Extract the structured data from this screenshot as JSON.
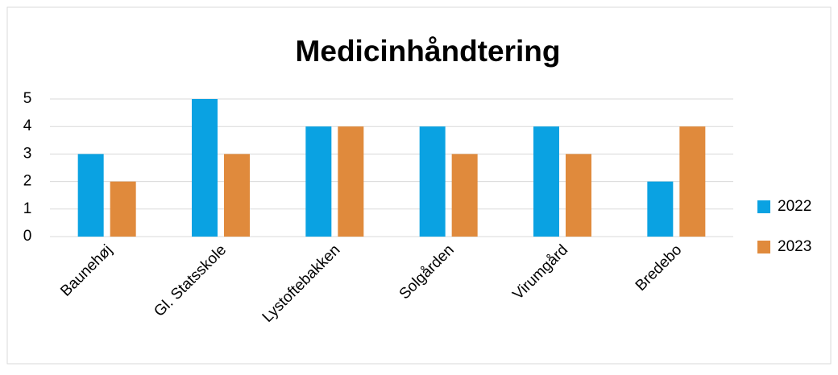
{
  "chart_data": {
    "type": "bar",
    "title": "Medicinhåndtering",
    "categories": [
      "Baunehøj",
      "Gl. Statsskole",
      "Lystoftebakken",
      "Solgården",
      "Virumgård",
      "Bredebo"
    ],
    "series": [
      {
        "name": "2022",
        "color": "#0aa2e2",
        "values": [
          3,
          5,
          4,
          4,
          4,
          2
        ]
      },
      {
        "name": "2023",
        "color": "#e08a3c",
        "values": [
          2,
          3,
          4,
          3,
          3,
          4
        ]
      }
    ],
    "ylim": [
      0,
      5
    ],
    "yticks": [
      0,
      1,
      2,
      3,
      4,
      5
    ],
    "grid": true,
    "legend": "right"
  }
}
